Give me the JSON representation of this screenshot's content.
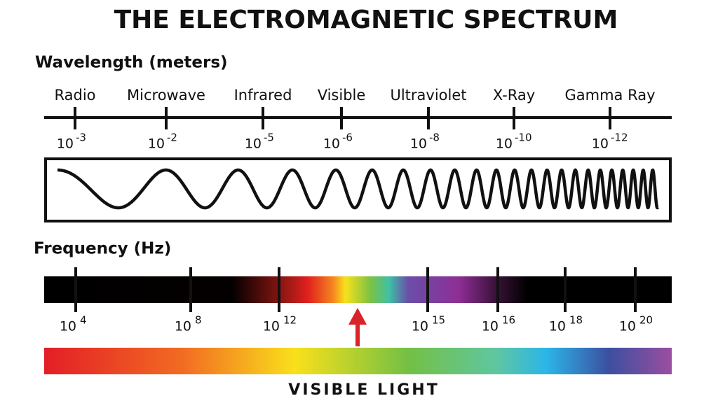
{
  "title": "THE ELECTROMAGNETIC SPECTRUM",
  "wavelength": {
    "label": "Wavelength (meters)",
    "bands": [
      {
        "name": "Radio",
        "base": "10",
        "exponent": "-3"
      },
      {
        "name": "Microwave",
        "base": "10",
        "exponent": "-2"
      },
      {
        "name": "Infrared",
        "base": "10",
        "exponent": "-5"
      },
      {
        "name": "Visible",
        "base": "10",
        "exponent": "-6"
      },
      {
        "name": "Ultraviolet",
        "base": "10",
        "exponent": "-8"
      },
      {
        "name": "X-Ray",
        "base": "10",
        "exponent": "-10"
      },
      {
        "name": "Gamma Ray",
        "base": "10",
        "exponent": "-12"
      }
    ]
  },
  "frequency": {
    "label": "Frequency (Hz)",
    "ticks": [
      {
        "base": "10",
        "exponent": "4"
      },
      {
        "base": "10",
        "exponent": "8"
      },
      {
        "base": "10",
        "exponent": "12"
      },
      {
        "base": "10",
        "exponent": "15"
      },
      {
        "base": "10",
        "exponent": "16"
      },
      {
        "base": "10",
        "exponent": "18"
      },
      {
        "base": "10",
        "exponent": "20"
      }
    ]
  },
  "visible_light": "VISIBLE LIGHT"
}
